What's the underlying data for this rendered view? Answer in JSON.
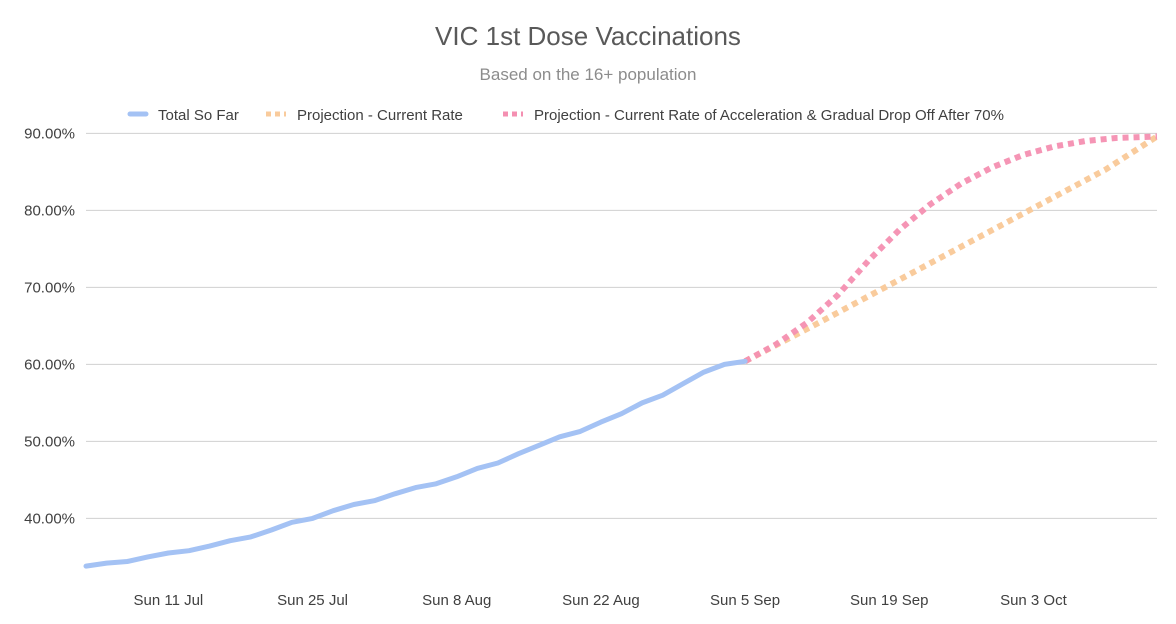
{
  "chart_data": {
    "type": "line",
    "title": "VIC 1st Dose Vaccinations",
    "subtitle": "Based on the 16+ population",
    "xlabel": "",
    "ylabel": "",
    "x_axis": {
      "type": "date",
      "range": [
        "2021-07-03",
        "2021-10-15"
      ],
      "ticks": [
        {
          "date": "2021-07-11",
          "label": "Sun 11 Jul"
        },
        {
          "date": "2021-07-25",
          "label": "Sun 25 Jul"
        },
        {
          "date": "2021-08-08",
          "label": "Sun 8 Aug"
        },
        {
          "date": "2021-08-22",
          "label": "Sun 22 Aug"
        },
        {
          "date": "2021-09-05",
          "label": "Sun 5 Sep"
        },
        {
          "date": "2021-09-19",
          "label": "Sun 19 Sep"
        },
        {
          "date": "2021-10-03",
          "label": "Sun 3 Oct"
        }
      ]
    },
    "y_axis": {
      "range": [
        32,
        92
      ],
      "ticks": [
        {
          "value": 40,
          "label": "40.00%"
        },
        {
          "value": 50,
          "label": "50.00%"
        },
        {
          "value": 60,
          "label": "60.00%"
        },
        {
          "value": 70,
          "label": "70.00%"
        },
        {
          "value": 80,
          "label": "80.00%"
        },
        {
          "value": 90,
          "label": "90.00%"
        }
      ]
    },
    "grid": "horizontal",
    "legend_position": "top",
    "series": [
      {
        "name": "Total So Far",
        "color": "#a4c2f4",
        "style": "solid",
        "x": [
          "2021-07-03",
          "2021-07-05",
          "2021-07-07",
          "2021-07-09",
          "2021-07-11",
          "2021-07-13",
          "2021-07-15",
          "2021-07-17",
          "2021-07-19",
          "2021-07-21",
          "2021-07-23",
          "2021-07-25",
          "2021-07-27",
          "2021-07-29",
          "2021-07-31",
          "2021-08-02",
          "2021-08-04",
          "2021-08-06",
          "2021-08-08",
          "2021-08-10",
          "2021-08-12",
          "2021-08-14",
          "2021-08-16",
          "2021-08-18",
          "2021-08-20",
          "2021-08-22",
          "2021-08-24",
          "2021-08-26",
          "2021-08-28",
          "2021-08-30",
          "2021-09-01",
          "2021-09-03",
          "2021-09-05"
        ],
        "values": [
          33.8,
          34.2,
          34.4,
          35.0,
          35.5,
          35.8,
          36.4,
          37.1,
          37.6,
          38.5,
          39.5,
          40.0,
          41.0,
          41.8,
          42.3,
          43.2,
          44.0,
          44.5,
          45.4,
          46.5,
          47.2,
          48.4,
          49.5,
          50.6,
          51.3,
          52.5,
          53.6,
          55.0,
          56.0,
          57.5,
          59.0,
          60.0,
          60.4
        ]
      },
      {
        "name": "Projection - Current Rate",
        "color": "#f9cb9c",
        "style": "dotted",
        "x": [
          "2021-09-05",
          "2021-09-12",
          "2021-09-19",
          "2021-09-26",
          "2021-10-03",
          "2021-10-10",
          "2021-10-15"
        ],
        "values": [
          60.4,
          65.3,
          70.3,
          75.3,
          80.3,
          85.3,
          89.6
        ]
      },
      {
        "name": "Projection - Current Rate of Acceleration & Gradual Drop Off After 70%",
        "color": "#f48fb1",
        "style": "dotted",
        "x": [
          "2021-09-05",
          "2021-09-08",
          "2021-09-11",
          "2021-09-14",
          "2021-09-17",
          "2021-09-20",
          "2021-09-23",
          "2021-09-26",
          "2021-09-29",
          "2021-10-02",
          "2021-10-05",
          "2021-10-08",
          "2021-10-11",
          "2021-10-15"
        ],
        "values": [
          60.4,
          62.6,
          65.4,
          69.0,
          73.5,
          77.5,
          80.8,
          83.5,
          85.6,
          87.2,
          88.3,
          89.0,
          89.4,
          89.6
        ]
      }
    ]
  }
}
